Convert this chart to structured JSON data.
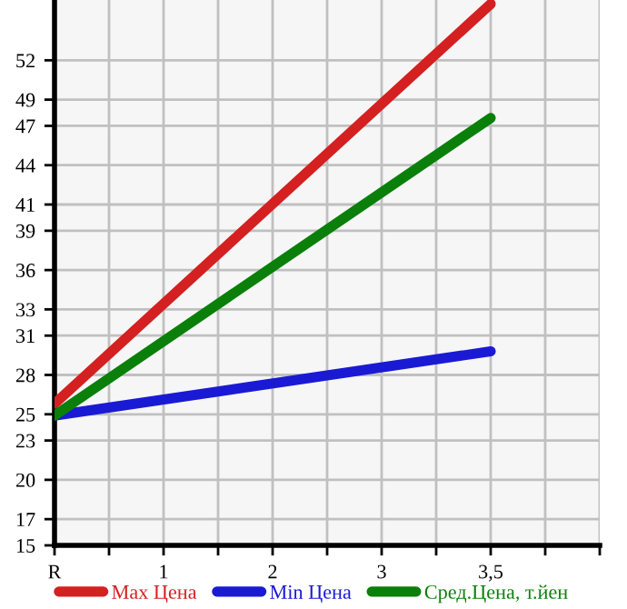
{
  "chart_data": {
    "type": "line",
    "categories": [
      "R",
      null,
      "1",
      null,
      "2",
      null,
      "3",
      null,
      "3,5",
      null,
      null
    ],
    "ylim": [
      15,
      56.6
    ],
    "yticks": [
      15,
      17,
      20,
      23,
      25,
      28,
      31,
      33,
      36,
      39,
      41,
      44,
      47,
      49,
      52
    ],
    "grid": true,
    "legend": "bottom",
    "marker": "none",
    "line_style": "solid",
    "series": [
      {
        "name": "Max Цена",
        "color": "#d42020",
        "values": [
          25.8,
          null,
          null,
          null,
          null,
          null,
          null,
          null,
          56.3,
          null,
          null
        ]
      },
      {
        "name": "Min Цена",
        "color": "#1a1ad4",
        "values": [
          24.9,
          null,
          null,
          null,
          null,
          null,
          null,
          null,
          29.8,
          null,
          null
        ]
      },
      {
        "name": "Сред.Цена, т.йен",
        "color": "#0a800a",
        "values": [
          24.9,
          null,
          null,
          null,
          null,
          null,
          null,
          null,
          47.6,
          null,
          null
        ]
      }
    ]
  }
}
